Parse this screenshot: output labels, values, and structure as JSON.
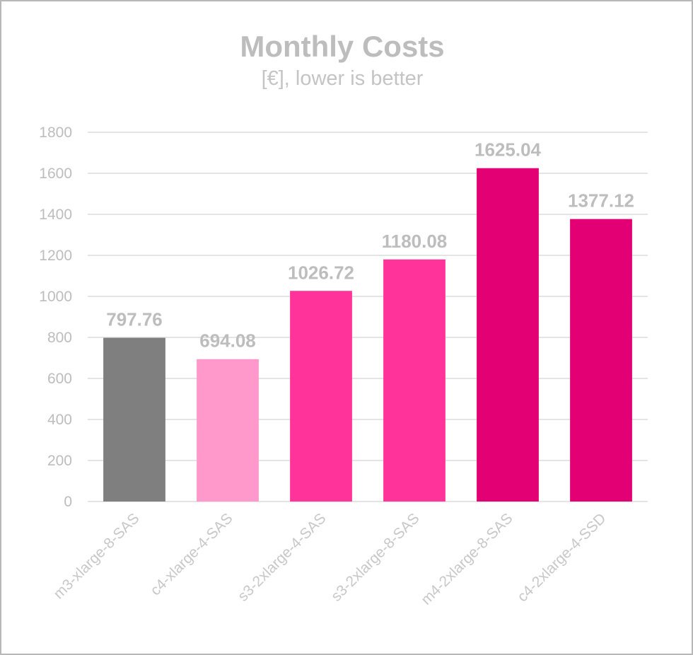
{
  "chart_data": {
    "type": "bar",
    "title": "Monthly Costs",
    "subtitle": "[€], lower is better",
    "xlabel": "",
    "ylabel": "",
    "ylim": [
      0,
      1800
    ],
    "yticks": [
      0,
      200,
      400,
      600,
      800,
      1000,
      1200,
      1400,
      1600,
      1800
    ],
    "grid": true,
    "legend": "none",
    "categories": [
      "m3-xlarge-8-SAS",
      "c4-xlarge-4-SAS",
      "s3-2xlarge-4-SAS",
      "s3-2xlarge-8-SAS",
      "m4-2xlarge-8-SAS",
      "c4-2xlarge-4-SSD"
    ],
    "values": [
      797.76,
      694.08,
      1026.72,
      1180.08,
      1625.04,
      1377.12
    ],
    "data_labels": [
      "797.76",
      "694.08",
      "1026.72",
      "1180.08",
      "1625.04",
      "1377.12"
    ],
    "bar_colors": [
      "#7f7f7f",
      "#ff99cc",
      "#ff3399",
      "#ff3399",
      "#e20074",
      "#e20074"
    ]
  }
}
